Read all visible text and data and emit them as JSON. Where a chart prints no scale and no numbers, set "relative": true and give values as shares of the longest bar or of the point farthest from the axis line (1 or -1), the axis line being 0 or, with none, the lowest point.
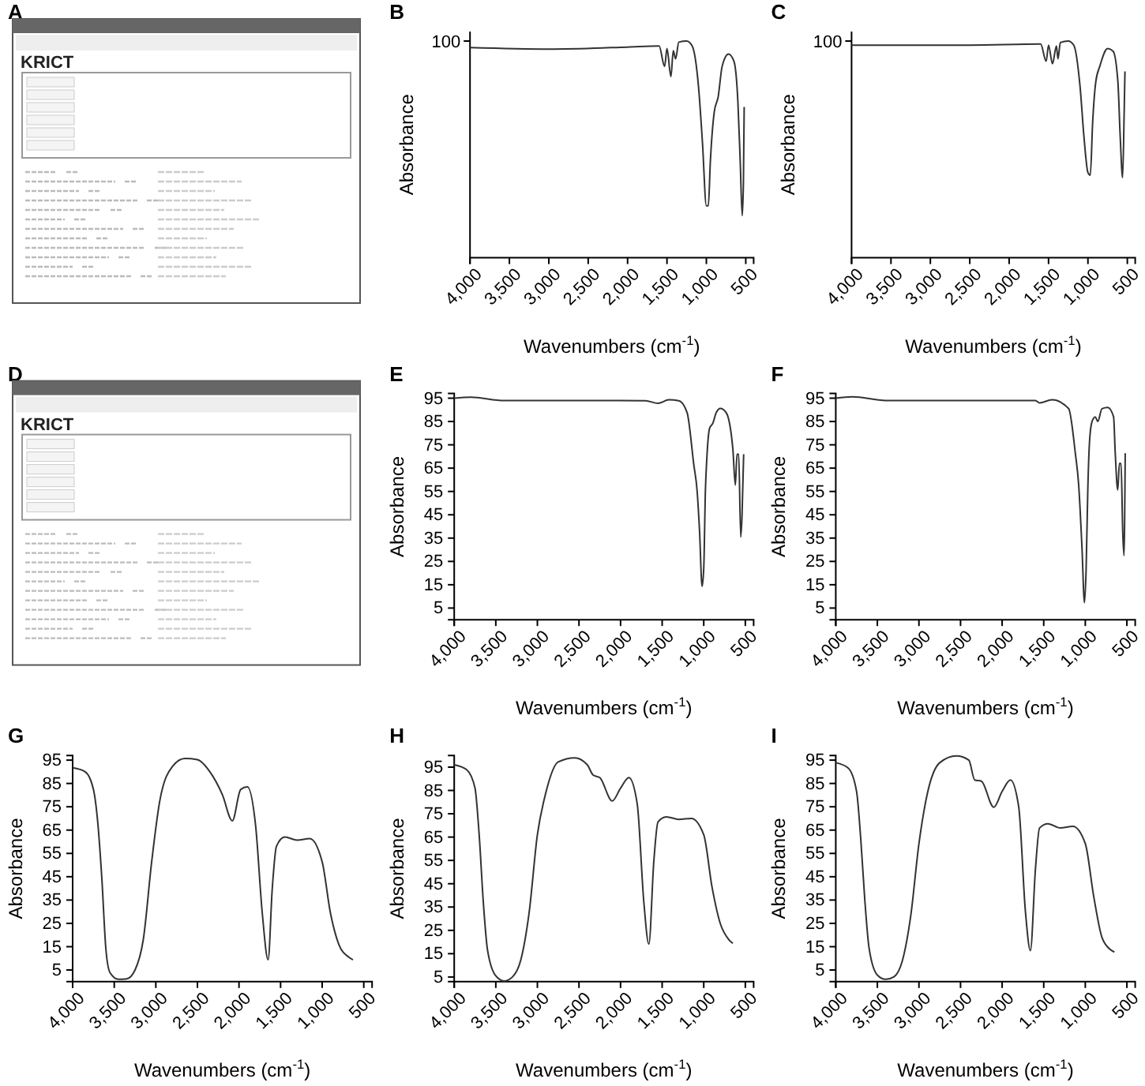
{
  "chart_data": [
    {
      "type": "other",
      "title": "A",
      "annotations": [
        "KRICT"
      ]
    },
    {
      "type": "line",
      "title": "B",
      "xlabel": "Wavenumbers (cm$^{-1}$)",
      "ylabel": "Absorbance",
      "relative": true,
      "annotations": [
        "100"
      ],
      "xlim": [
        4000,
        400
      ],
      "xticks": [
        {
          "value": 4000,
          "label": "4,000"
        },
        {
          "value": 3500,
          "label": "3,500"
        },
        {
          "value": 3000,
          "label": "3,000"
        },
        {
          "value": 2500,
          "label": "2,500"
        },
        {
          "value": 2000,
          "label": "2,000"
        },
        {
          "value": 1500,
          "label": "1,500"
        },
        {
          "value": 1000,
          "label": "1,000"
        },
        {
          "value": 500,
          "label": "500"
        }
      ],
      "color": "#333333",
      "x": [
        4000,
        3000,
        2000,
        1600,
        1530,
        1500,
        1450,
        1420,
        1390,
        1350,
        1250,
        1180,
        1100,
        1050,
        1000,
        975,
        950,
        900,
        850,
        800,
        720,
        650,
        600,
        570,
        545,
        530,
        520
      ],
      "values": [
        0.97,
        0.963,
        0.972,
        0.977,
        0.883,
        0.965,
        0.836,
        0.955,
        0.918,
        0.995,
        1.0,
        0.977,
        0.79,
        0.533,
        0.24,
        0.24,
        0.44,
        0.673,
        0.743,
        0.883,
        0.94,
        0.907,
        0.72,
        0.44,
        0.194,
        0.346,
        0.696
      ]
    },
    {
      "type": "line",
      "title": "C",
      "xlabel": "Wavenumbers (cm$^{-1}$)",
      "ylabel": "Absorbance",
      "relative": true,
      "annotations": [
        "100"
      ],
      "xlim": [
        4000,
        400
      ],
      "xticks": [
        {
          "value": 4000,
          "label": "4,000"
        },
        {
          "value": 3500,
          "label": "3,500"
        },
        {
          "value": 3000,
          "label": "3,000"
        },
        {
          "value": 2500,
          "label": "2,500"
        },
        {
          "value": 2000,
          "label": "2,000"
        },
        {
          "value": 1500,
          "label": "1,500"
        },
        {
          "value": 1000,
          "label": "1,000"
        },
        {
          "value": 500,
          "label": "500"
        }
      ],
      "color": "#333333",
      "x": [
        4000,
        2500,
        1600,
        1530,
        1500,
        1450,
        1400,
        1380,
        1350,
        1250,
        1180,
        1100,
        1050,
        1000,
        970,
        940,
        900,
        850,
        750,
        680,
        620,
        590,
        560,
        540,
        530
      ],
      "values": [
        0.981,
        0.981,
        0.986,
        0.907,
        0.981,
        0.895,
        0.977,
        0.918,
        0.993,
        1.0,
        0.981,
        0.79,
        0.556,
        0.393,
        0.381,
        0.626,
        0.813,
        0.883,
        0.965,
        0.953,
        0.813,
        0.556,
        0.369,
        0.673,
        0.86
      ]
    },
    {
      "type": "other",
      "title": "D",
      "annotations": [
        "KRICT"
      ]
    },
    {
      "type": "line",
      "title": "E",
      "xlabel": "Wavenumbers (cm$^{-1}$)",
      "ylabel": "Absorbance",
      "ylim": [
        0,
        97
      ],
      "yticks": [
        5,
        15,
        25,
        35,
        45,
        55,
        65,
        75,
        85,
        95
      ],
      "xlim": [
        4000,
        400
      ],
      "xticks": [
        {
          "value": 4000,
          "label": "4,000"
        },
        {
          "value": 3500,
          "label": "3,500"
        },
        {
          "value": 3000,
          "label": "3,000"
        },
        {
          "value": 2500,
          "label": "2,500"
        },
        {
          "value": 2000,
          "label": "2,000"
        },
        {
          "value": 1500,
          "label": "1,500"
        },
        {
          "value": 1000,
          "label": "1,000"
        },
        {
          "value": 500,
          "label": "500"
        }
      ],
      "color": "#333333",
      "x": [
        4000,
        3800,
        3400,
        2500,
        1700,
        1550,
        1420,
        1300,
        1200,
        1120,
        1080,
        1050,
        1020,
        1000,
        980,
        960,
        930,
        890,
        850,
        800,
        730,
        650,
        620,
        600,
        580,
        555,
        540,
        520
      ],
      "values": [
        95,
        95.4,
        94,
        94,
        93.9,
        92.8,
        94.3,
        93.9,
        88.8,
        66.6,
        55.4,
        37.7,
        14.3,
        22,
        55.4,
        71,
        82,
        84.3,
        88.8,
        90.6,
        88.8,
        73.2,
        57.7,
        71,
        71,
        35.4,
        44.3,
        71
      ]
    },
    {
      "type": "line",
      "title": "F",
      "xlabel": "Wavenumbers (cm$^{-1}$)",
      "ylabel": "Absorbance",
      "ylim": [
        0,
        97
      ],
      "yticks": [
        5,
        15,
        25,
        35,
        45,
        55,
        65,
        75,
        85,
        95
      ],
      "xlim": [
        4000,
        400
      ],
      "xticks": [
        {
          "value": 4000,
          "label": "4,000"
        },
        {
          "value": 3500,
          "label": "3,500"
        },
        {
          "value": 3000,
          "label": "3,000"
        },
        {
          "value": 2500,
          "label": "2,500"
        },
        {
          "value": 2000,
          "label": "2,000"
        },
        {
          "value": 1500,
          "label": "1,500"
        },
        {
          "value": 1000,
          "label": "1,000"
        },
        {
          "value": 500,
          "label": "500"
        }
      ],
      "color": "#333333",
      "x": [
        4000,
        3800,
        3400,
        2500,
        1600,
        1550,
        1400,
        1200,
        1120,
        1080,
        1040,
        1010,
        990,
        970,
        950,
        920,
        880,
        850,
        800,
        730,
        660,
        640,
        610,
        590,
        570,
        550,
        535,
        520
      ],
      "values": [
        95,
        95.6,
        94,
        94,
        94,
        93,
        94.3,
        90.5,
        71.4,
        58,
        31,
        7.3,
        21.8,
        55.6,
        75.9,
        84.9,
        87,
        85,
        90.5,
        91,
        87,
        71.4,
        55.6,
        67,
        67,
        37.6,
        27.5,
        71.4
      ]
    },
    {
      "type": "line",
      "title": "G",
      "xlabel": "Wavenumbers (cm$^{-1}$)",
      "ylabel": "Absorbance",
      "ylim": [
        0,
        97
      ],
      "yticks": [
        5,
        15,
        25,
        35,
        45,
        55,
        65,
        75,
        85,
        95
      ],
      "xlim": [
        4000,
        400
      ],
      "xticks": [
        {
          "value": 4000,
          "label": "4,000"
        },
        {
          "value": 3500,
          "label": "3,500"
        },
        {
          "value": 3000,
          "label": "3,000"
        },
        {
          "value": 2500,
          "label": "2,500"
        },
        {
          "value": 2000,
          "label": "2,000"
        },
        {
          "value": 1500,
          "label": "1,500"
        },
        {
          "value": 1000,
          "label": "1,000"
        },
        {
          "value": 500,
          "label": "500"
        }
      ],
      "color": "#333333",
      "x": [
        4000,
        3850,
        3750,
        3700,
        3650,
        3600,
        3550,
        3450,
        3350,
        3250,
        3150,
        3050,
        2950,
        2800,
        2650,
        2500,
        2350,
        2200,
        2080,
        1980,
        1900,
        1800,
        1720,
        1650,
        1600,
        1550,
        1450,
        1300,
        1150,
        1000,
        900,
        800,
        680,
        630
      ],
      "values": [
        91.7,
        90,
        82.4,
        69,
        44.8,
        13.8,
        3.8,
        1,
        1.2,
        5,
        18.2,
        51.4,
        78,
        92.3,
        95.7,
        95.2,
        90,
        80.2,
        69,
        82.4,
        83.5,
        66.8,
        29.3,
        9.4,
        40,
        58,
        62,
        60.7,
        61.4,
        51.4,
        29.3,
        16,
        10.5,
        9.4
      ]
    },
    {
      "type": "line",
      "title": "H",
      "xlabel": "Wavenumbers (cm$^{-1}$)",
      "ylabel": "Absorbance",
      "ylim": [
        3,
        100
      ],
      "yticks": [
        5,
        15,
        25,
        35,
        45,
        55,
        65,
        75,
        85,
        95
      ],
      "xlim": [
        4000,
        400
      ],
      "xticks": [
        {
          "value": 4000,
          "label": "4,000"
        },
        {
          "value": 3500,
          "label": "3,500"
        },
        {
          "value": 3000,
          "label": "3,000"
        },
        {
          "value": 2500,
          "label": "2,500"
        },
        {
          "value": 2000,
          "label": "2,000"
        },
        {
          "value": 1500,
          "label": "1,500"
        },
        {
          "value": 1000,
          "label": "1,000"
        },
        {
          "value": 500,
          "label": "500"
        }
      ],
      "color": "#333333",
      "x": [
        4000,
        3850,
        3750,
        3700,
        3650,
        3600,
        3500,
        3400,
        3300,
        3200,
        3100,
        3000,
        2900,
        2750,
        2550,
        2400,
        2330,
        2250,
        2100,
        2000,
        1900,
        1800,
        1720,
        1660,
        1600,
        1550,
        1450,
        1300,
        1150,
        1000,
        900,
        800,
        700,
        650
      ],
      "values": [
        96,
        93.9,
        86,
        66,
        37,
        16.7,
        5.5,
        3.3,
        5,
        12.2,
        32.4,
        66,
        83.8,
        97.2,
        99,
        96,
        91.6,
        90.5,
        80.5,
        86,
        90.5,
        79.3,
        37,
        19.1,
        54.7,
        71.5,
        73.7,
        72.6,
        73,
        66,
        43.5,
        27.8,
        21.1,
        19.4
      ]
    },
    {
      "type": "line",
      "title": "I",
      "xlabel": "Wavenumbers (cm$^{-1}$)",
      "ylabel": "Absorbance",
      "ylim": [
        0,
        97
      ],
      "yticks": [
        5,
        15,
        25,
        35,
        45,
        55,
        65,
        75,
        85,
        95
      ],
      "xlim": [
        4000,
        400
      ],
      "xticks": [
        {
          "value": 4000,
          "label": "4,000"
        },
        {
          "value": 3500,
          "label": "3,500"
        },
        {
          "value": 3000,
          "label": "3,000"
        },
        {
          "value": 2500,
          "label": "2,500"
        },
        {
          "value": 2000,
          "label": "2,000"
        },
        {
          "value": 1500,
          "label": "1,500"
        },
        {
          "value": 1000,
          "label": "1,000"
        },
        {
          "value": 500,
          "label": "500"
        }
      ],
      "color": "#333333",
      "x": [
        4000,
        3850,
        3750,
        3700,
        3650,
        3600,
        3500,
        3400,
        3300,
        3200,
        3100,
        3000,
        2900,
        2750,
        2550,
        2400,
        2330,
        2250,
        2100,
        2000,
        1900,
        1800,
        1720,
        1660,
        1600,
        1550,
        1450,
        1300,
        1150,
        1000,
        900,
        800,
        700,
        650
      ],
      "values": [
        93.9,
        91.6,
        81.6,
        61.4,
        34.6,
        14.5,
        2.8,
        1,
        2.1,
        8.9,
        27.9,
        59.2,
        80.5,
        93.9,
        96.8,
        95,
        86.5,
        86,
        74.8,
        81.6,
        86.5,
        74.8,
        30.1,
        13.3,
        48,
        65.9,
        67.7,
        65.9,
        66.6,
        59.2,
        36.8,
        19,
        13.8,
        12.7
      ]
    }
  ]
}
